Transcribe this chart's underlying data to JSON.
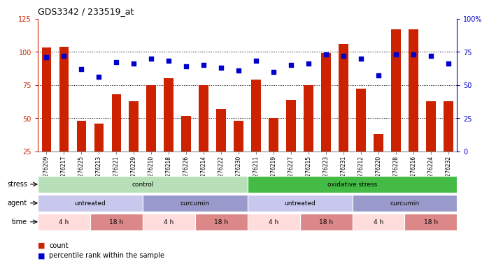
{
  "title": "GDS3342 / 233519_at",
  "samples": [
    "GSM276209",
    "GSM276217",
    "GSM276225",
    "GSM276213",
    "GSM276221",
    "GSM276229",
    "GSM276210",
    "GSM276218",
    "GSM276226",
    "GSM276214",
    "GSM276222",
    "GSM276230",
    "GSM276211",
    "GSM276219",
    "GSM276227",
    "GSM276215",
    "GSM276223",
    "GSM276231",
    "GSM276212",
    "GSM276220",
    "GSM276228",
    "GSM276216",
    "GSM276224",
    "GSM276232"
  ],
  "bar_values": [
    103,
    104,
    48,
    46,
    68,
    63,
    75,
    80,
    52,
    75,
    57,
    48,
    79,
    50,
    64,
    75,
    99,
    106,
    72,
    38,
    117,
    117,
    63,
    63
  ],
  "dot_values": [
    71,
    72,
    62,
    56,
    67,
    66,
    70,
    68,
    64,
    65,
    63,
    61,
    68,
    60,
    65,
    66,
    73,
    72,
    70,
    57,
    73,
    73,
    72,
    66
  ],
  "bar_color": "#cc2200",
  "dot_color": "#0000cc",
  "ylim_left": [
    25,
    125
  ],
  "ylim_right": [
    0,
    100
  ],
  "yticks_left": [
    25,
    50,
    75,
    100,
    125
  ],
  "yticks_right": [
    0,
    25,
    50,
    75,
    100
  ],
  "ytick_labels_right": [
    "0",
    "25",
    "50",
    "75",
    "100%"
  ],
  "grid_lines": [
    50,
    75,
    100
  ],
  "stress_labels": [
    {
      "text": "control",
      "start": 0,
      "end": 11,
      "color": "#b8e0b8"
    },
    {
      "text": "oxidative stress",
      "start": 12,
      "end": 23,
      "color": "#44bb44"
    }
  ],
  "agent_labels": [
    {
      "text": "untreated",
      "start": 0,
      "end": 5,
      "color": "#c8c8ee"
    },
    {
      "text": "curcumin",
      "start": 6,
      "end": 11,
      "color": "#9999cc"
    },
    {
      "text": "untreated",
      "start": 12,
      "end": 17,
      "color": "#c8c8ee"
    },
    {
      "text": "curcumin",
      "start": 18,
      "end": 23,
      "color": "#9999cc"
    }
  ],
  "time_labels": [
    {
      "text": "4 h",
      "start": 0,
      "end": 2,
      "color": "#ffdddd"
    },
    {
      "text": "18 h",
      "start": 3,
      "end": 5,
      "color": "#dd8888"
    },
    {
      "text": "4 h",
      "start": 6,
      "end": 8,
      "color": "#ffdddd"
    },
    {
      "text": "18 h",
      "start": 9,
      "end": 11,
      "color": "#dd8888"
    },
    {
      "text": "4 h",
      "start": 12,
      "end": 14,
      "color": "#ffdddd"
    },
    {
      "text": "18 h",
      "start": 15,
      "end": 17,
      "color": "#dd8888"
    },
    {
      "text": "4 h",
      "start": 18,
      "end": 20,
      "color": "#ffdddd"
    },
    {
      "text": "18 h",
      "start": 21,
      "end": 23,
      "color": "#dd8888"
    }
  ],
  "row_labels": [
    "stress",
    "agent",
    "time"
  ],
  "legend": [
    {
      "label": "count",
      "color": "#cc2200"
    },
    {
      "label": "percentile rank within the sample",
      "color": "#0000cc"
    }
  ],
  "bg_color": "#ffffff",
  "plot_bg_color": "#ffffff",
  "tick_color_left": "#cc2200",
  "tick_color_right": "#0000cc"
}
